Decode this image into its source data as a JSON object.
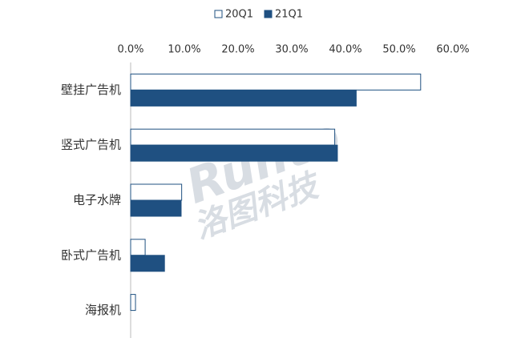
{
  "chart_data": {
    "type": "hbar",
    "categories": [
      "壁挂广告机",
      "竖式广告机",
      "电子水牌",
      "卧式广告机",
      "海报机"
    ],
    "series": [
      {
        "name": "20Q1",
        "color": "#1f5081",
        "fill": "#ffffff",
        "values": [
          54,
          38,
          9.5,
          2.7,
          0.9
        ]
      },
      {
        "name": "21Q1",
        "color": "#1f5081",
        "fill": "#1f5081",
        "values": [
          42,
          38.5,
          9.4,
          6.3,
          0
        ]
      }
    ],
    "xlim": [
      0,
      60
    ],
    "xticks": [
      {
        "value": 0,
        "label": "0.0%"
      },
      {
        "value": 10,
        "label": "10.0%"
      },
      {
        "value": 20,
        "label": "20.0%"
      },
      {
        "value": 30,
        "label": "30.0%"
      },
      {
        "value": 40,
        "label": "40.0%"
      },
      {
        "value": 50,
        "label": "50.0%"
      },
      {
        "value": 60,
        "label": "60.0%"
      }
    ],
    "legend": "top",
    "watermark": [
      "Runto",
      "洛图科技"
    ]
  }
}
